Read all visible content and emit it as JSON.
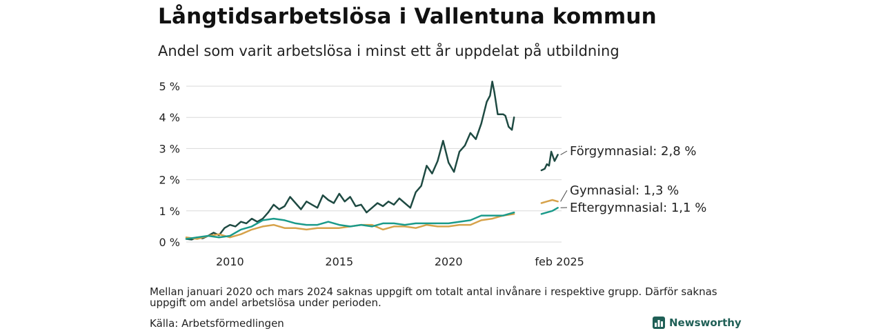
{
  "header": {
    "title": "Långtidsarbetslösa i Vallentuna kommun",
    "subtitle": "Andel som varit arbetslösa i minst ett år uppdelat på utbildning"
  },
  "footer": {
    "note": "Mellan januari 2020 och mars 2024 saknas uppgift om totalt antal invånare i respektive grupp. Därför saknas uppgift om andel arbetslösa under perioden.",
    "source": "Källa: Arbetsförmedlingen",
    "brand": "Newsworthy"
  },
  "colors": {
    "forgymnasial": "#1e4a42",
    "gymnasial": "#d6a24a",
    "eftergymnasial": "#1a9a8a",
    "grid": "#d9d9d9",
    "brand": "#1f5f56"
  },
  "chart_data": {
    "type": "line",
    "x_unit": "year",
    "xlim": [
      2008.0,
      2025.17
    ],
    "ylim": [
      0,
      5
    ],
    "y_ticks": [
      0,
      1,
      2,
      3,
      4,
      5
    ],
    "y_tick_labels": [
      "0 %",
      "1 %",
      "2 %",
      "3 %",
      "4 %",
      "5 %"
    ],
    "x_ticks": [
      2010,
      2015,
      2020,
      2025.08
    ],
    "x_tick_labels": [
      "2010",
      "2015",
      "2020",
      "feb 2025"
    ],
    "grid": true,
    "series": [
      {
        "name": "Förgymnasial",
        "label": "Förgymnasial: 2,8 %",
        "color_key": "forgymnasial",
        "segments": [
          [
            [
              2008.0,
              0.1
            ],
            [
              2008.25,
              0.08
            ],
            [
              2008.5,
              0.15
            ],
            [
              2008.75,
              0.12
            ],
            [
              2009.0,
              0.2
            ],
            [
              2009.25,
              0.3
            ],
            [
              2009.5,
              0.22
            ],
            [
              2009.75,
              0.45
            ],
            [
              2010.0,
              0.55
            ],
            [
              2010.25,
              0.5
            ],
            [
              2010.5,
              0.65
            ],
            [
              2010.75,
              0.6
            ],
            [
              2011.0,
              0.75
            ],
            [
              2011.25,
              0.65
            ],
            [
              2011.5,
              0.75
            ],
            [
              2011.75,
              0.95
            ],
            [
              2012.0,
              1.2
            ],
            [
              2012.25,
              1.05
            ],
            [
              2012.5,
              1.15
            ],
            [
              2012.75,
              1.45
            ],
            [
              2013.0,
              1.25
            ],
            [
              2013.25,
              1.05
            ],
            [
              2013.5,
              1.3
            ],
            [
              2013.75,
              1.2
            ],
            [
              2014.0,
              1.1
            ],
            [
              2014.25,
              1.5
            ],
            [
              2014.5,
              1.35
            ],
            [
              2014.75,
              1.25
            ],
            [
              2015.0,
              1.55
            ],
            [
              2015.25,
              1.3
            ],
            [
              2015.5,
              1.45
            ],
            [
              2015.75,
              1.15
            ],
            [
              2016.0,
              1.2
            ],
            [
              2016.25,
              0.95
            ],
            [
              2016.5,
              1.1
            ],
            [
              2016.75,
              1.25
            ],
            [
              2017.0,
              1.15
            ],
            [
              2017.25,
              1.3
            ],
            [
              2017.5,
              1.2
            ],
            [
              2017.75,
              1.4
            ],
            [
              2018.0,
              1.25
            ],
            [
              2018.25,
              1.1
            ],
            [
              2018.5,
              1.6
            ],
            [
              2018.75,
              1.8
            ],
            [
              2019.0,
              2.45
            ],
            [
              2019.25,
              2.2
            ],
            [
              2019.5,
              2.6
            ],
            [
              2019.75,
              3.25
            ],
            [
              2020.0,
              2.55
            ],
            [
              2020.25,
              2.25
            ],
            [
              2020.5,
              2.9
            ],
            [
              2020.75,
              3.1
            ],
            [
              2021.0,
              3.5
            ],
            [
              2021.25,
              3.3
            ],
            [
              2021.5,
              3.8
            ],
            [
              2021.75,
              4.5
            ],
            [
              2021.9,
              4.7
            ],
            [
              2022.0,
              5.15
            ],
            [
              2022.1,
              4.8
            ],
            [
              2022.25,
              4.1
            ],
            [
              2022.5,
              4.1
            ],
            [
              2022.6,
              4.05
            ],
            [
              2022.75,
              3.7
            ],
            [
              2022.9,
              3.6
            ],
            [
              2023.0,
              4.0
            ]
          ],
          [
            [
              2024.25,
              2.3
            ],
            [
              2024.4,
              2.35
            ],
            [
              2024.5,
              2.5
            ],
            [
              2024.6,
              2.45
            ],
            [
              2024.7,
              2.9
            ],
            [
              2024.85,
              2.6
            ],
            [
              2025.0,
              2.8
            ]
          ]
        ]
      },
      {
        "name": "Gymnasial",
        "label": "Gymnasial: 1,3 %",
        "color_key": "gymnasial",
        "segments": [
          [
            [
              2008.0,
              0.15
            ],
            [
              2008.5,
              0.1
            ],
            [
              2009.0,
              0.2
            ],
            [
              2009.5,
              0.25
            ],
            [
              2010.0,
              0.15
            ],
            [
              2010.5,
              0.25
            ],
            [
              2011.0,
              0.4
            ],
            [
              2011.5,
              0.5
            ],
            [
              2012.0,
              0.55
            ],
            [
              2012.5,
              0.45
            ],
            [
              2013.0,
              0.45
            ],
            [
              2013.5,
              0.4
            ],
            [
              2014.0,
              0.45
            ],
            [
              2014.5,
              0.45
            ],
            [
              2015.0,
              0.45
            ],
            [
              2015.5,
              0.5
            ],
            [
              2016.0,
              0.55
            ],
            [
              2016.5,
              0.55
            ],
            [
              2017.0,
              0.4
            ],
            [
              2017.5,
              0.5
            ],
            [
              2018.0,
              0.5
            ],
            [
              2018.5,
              0.45
            ],
            [
              2019.0,
              0.55
            ],
            [
              2019.5,
              0.5
            ],
            [
              2020.0,
              0.5
            ],
            [
              2020.5,
              0.55
            ],
            [
              2021.0,
              0.55
            ],
            [
              2021.5,
              0.7
            ],
            [
              2022.0,
              0.75
            ],
            [
              2022.5,
              0.85
            ],
            [
              2023.0,
              0.9
            ]
          ],
          [
            [
              2024.25,
              1.25
            ],
            [
              2024.5,
              1.3
            ],
            [
              2024.75,
              1.35
            ],
            [
              2025.0,
              1.3
            ]
          ]
        ]
      },
      {
        "name": "Eftergymnasial",
        "label": "Eftergymnasial: 1,1 %",
        "color_key": "eftergymnasial",
        "segments": [
          [
            [
              2008.0,
              0.1
            ],
            [
              2008.5,
              0.15
            ],
            [
              2009.0,
              0.2
            ],
            [
              2009.5,
              0.15
            ],
            [
              2010.0,
              0.2
            ],
            [
              2010.5,
              0.4
            ],
            [
              2011.0,
              0.5
            ],
            [
              2011.5,
              0.7
            ],
            [
              2012.0,
              0.75
            ],
            [
              2012.5,
              0.7
            ],
            [
              2013.0,
              0.6
            ],
            [
              2013.5,
              0.55
            ],
            [
              2014.0,
              0.55
            ],
            [
              2014.5,
              0.65
            ],
            [
              2015.0,
              0.55
            ],
            [
              2015.5,
              0.5
            ],
            [
              2016.0,
              0.55
            ],
            [
              2016.5,
              0.5
            ],
            [
              2017.0,
              0.6
            ],
            [
              2017.5,
              0.6
            ],
            [
              2018.0,
              0.55
            ],
            [
              2018.5,
              0.6
            ],
            [
              2019.0,
              0.6
            ],
            [
              2019.5,
              0.6
            ],
            [
              2020.0,
              0.6
            ],
            [
              2020.5,
              0.65
            ],
            [
              2021.0,
              0.7
            ],
            [
              2021.5,
              0.85
            ],
            [
              2022.0,
              0.85
            ],
            [
              2022.5,
              0.85
            ],
            [
              2023.0,
              0.95
            ]
          ],
          [
            [
              2024.25,
              0.9
            ],
            [
              2024.5,
              0.95
            ],
            [
              2024.75,
              1.0
            ],
            [
              2025.0,
              1.1
            ]
          ]
        ]
      }
    ]
  }
}
